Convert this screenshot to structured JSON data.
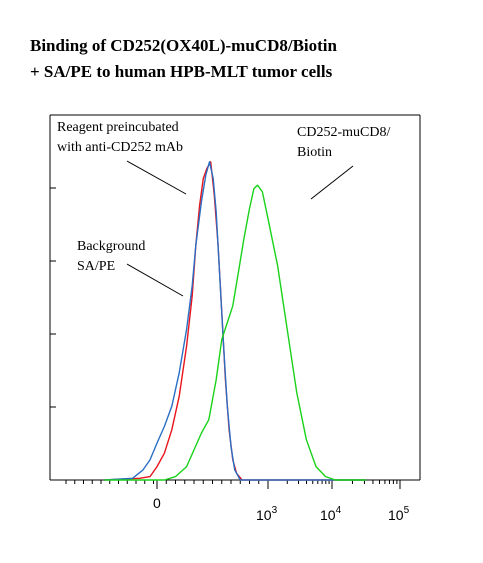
{
  "title_lines": [
    "Binding of CD252(OX40L)-muCD8/Biotin",
    "+ SA/PE to human HPB-MLT tumor cells"
  ],
  "annotations": {
    "preincubated_line1": "Reagent preincubated",
    "preincubated_line2": "with anti-CD252 mAb",
    "binding_line1": "CD252-muCD8/",
    "binding_line2": "Biotin",
    "background_line1": "Background",
    "background_line2": "SA/PE"
  },
  "colors": {
    "background_series": "#e8141c",
    "preincubated_series": "#2a6fc4",
    "binding_series": "#19d219",
    "axis": "#000000"
  },
  "chart_data": {
    "type": "line",
    "xlabel": "",
    "ylabel": "",
    "x_scale": "biexponential",
    "x_ticks": [
      {
        "base": "0",
        "exp": ""
      },
      {
        "base": "10",
        "exp": "3"
      },
      {
        "base": "10",
        "exp": "4"
      },
      {
        "base": "10",
        "exp": "5"
      }
    ],
    "y_range": [
      0,
      100
    ],
    "series": [
      {
        "name": "Background SA/PE",
        "color_key": "background_series",
        "points": [
          [
            -1.5,
            0
          ],
          [
            -0.5,
            0.5
          ],
          [
            -0.2,
            1
          ],
          [
            0,
            4
          ],
          [
            0.2,
            8
          ],
          [
            0.4,
            15
          ],
          [
            0.6,
            25
          ],
          [
            0.8,
            40
          ],
          [
            0.95,
            55
          ],
          [
            1.05,
            70
          ],
          [
            1.15,
            82
          ],
          [
            1.25,
            90
          ],
          [
            1.35,
            93
          ],
          [
            1.45,
            95
          ],
          [
            1.55,
            85
          ],
          [
            1.65,
            70
          ],
          [
            1.75,
            50
          ],
          [
            1.85,
            30
          ],
          [
            1.95,
            15
          ],
          [
            2.05,
            6
          ],
          [
            2.15,
            2
          ],
          [
            2.3,
            0
          ],
          [
            4.5,
            0
          ]
        ]
      },
      {
        "name": "Reagent preincubated with anti-CD252 mAb",
        "color_key": "preincubated_series",
        "points": [
          [
            -1.5,
            0
          ],
          [
            -0.7,
            0.5
          ],
          [
            -0.4,
            3
          ],
          [
            -0.2,
            6
          ],
          [
            0,
            11
          ],
          [
            0.2,
            16
          ],
          [
            0.4,
            22
          ],
          [
            0.6,
            32
          ],
          [
            0.8,
            45
          ],
          [
            0.95,
            58
          ],
          [
            1.05,
            70
          ],
          [
            1.2,
            83
          ],
          [
            1.32,
            91
          ],
          [
            1.42,
            95
          ],
          [
            1.52,
            90
          ],
          [
            1.6,
            80
          ],
          [
            1.7,
            60
          ],
          [
            1.8,
            40
          ],
          [
            1.9,
            22
          ],
          [
            2.0,
            10
          ],
          [
            2.1,
            3
          ],
          [
            2.25,
            0
          ],
          [
            4.5,
            0
          ]
        ]
      },
      {
        "name": "CD252-muCD8/Biotin",
        "color_key": "binding_series",
        "points": [
          [
            -1.5,
            0
          ],
          [
            0.2,
            0
          ],
          [
            0.5,
            1
          ],
          [
            0.8,
            4
          ],
          [
            1.0,
            9
          ],
          [
            1.2,
            14
          ],
          [
            1.4,
            18
          ],
          [
            1.6,
            30
          ],
          [
            1.75,
            42
          ],
          [
            1.9,
            47
          ],
          [
            2.05,
            52
          ],
          [
            2.2,
            62
          ],
          [
            2.35,
            72
          ],
          [
            2.5,
            81
          ],
          [
            2.62,
            87
          ],
          [
            2.72,
            88
          ],
          [
            2.85,
            86
          ],
          [
            3.0,
            78
          ],
          [
            3.15,
            64
          ],
          [
            3.3,
            45
          ],
          [
            3.45,
            26
          ],
          [
            3.6,
            12
          ],
          [
            3.75,
            4
          ],
          [
            3.9,
            1
          ],
          [
            4.05,
            0
          ],
          [
            4.5,
            0
          ]
        ]
      }
    ]
  }
}
